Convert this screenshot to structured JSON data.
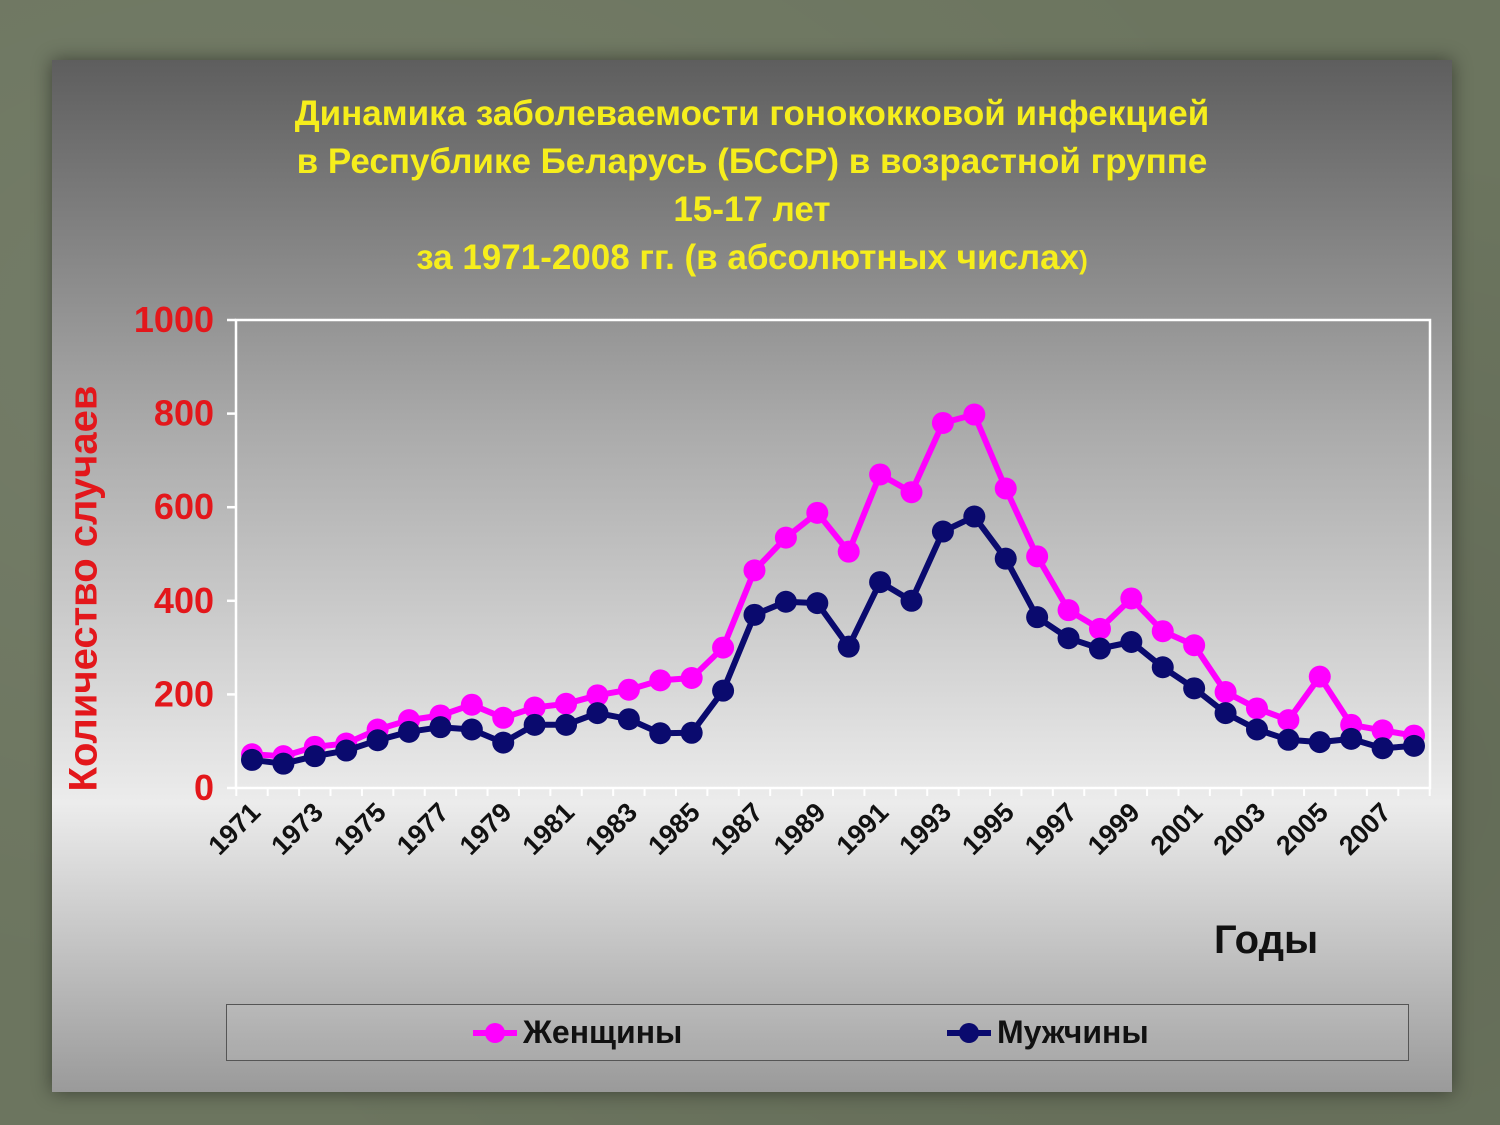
{
  "title": {
    "line1": "Динамика заболеваемости гонококковой инфекцией",
    "line2": "в Республике Беларусь (БССР) в возрастной группе",
    "line3": "15-17 лет",
    "line4": "за 1971-2008 гг. (в абсолютных числах",
    "line4_paren": ")"
  },
  "colors": {
    "women": "#ff00ff",
    "men": "#0a0a6e",
    "axis_text": "#e3171b",
    "title": "#f6ee1c"
  },
  "chart_data": {
    "type": "line",
    "xlabel": "Годы",
    "ylabel": "Количество случаев",
    "ylim": [
      0,
      1000
    ],
    "yticks": [
      "0",
      "200",
      "400",
      "600",
      "800",
      "1000"
    ],
    "x": [
      1971,
      1972,
      1973,
      1974,
      1975,
      1976,
      1977,
      1978,
      1979,
      1980,
      1981,
      1982,
      1983,
      1984,
      1985,
      1986,
      1987,
      1988,
      1989,
      1990,
      1991,
      1992,
      1993,
      1994,
      1995,
      1996,
      1997,
      1998,
      1999,
      2000,
      2001,
      2002,
      2003,
      2004,
      2005,
      2006,
      2007,
      2008
    ],
    "xtick_labels": [
      "1971",
      "1973",
      "1975",
      "1977",
      "1979",
      "1981",
      "1983",
      "1985",
      "1987",
      "1989",
      "1991",
      "1993",
      "1995",
      "1997",
      "1999",
      "2001",
      "2003",
      "2005",
      "2007"
    ],
    "grid": false,
    "legend_position": "bottom",
    "series": [
      {
        "name": "Женщины",
        "color": "#ff00ff",
        "values": [
          72,
          68,
          88,
          95,
          125,
          145,
          155,
          178,
          150,
          172,
          180,
          198,
          210,
          230,
          235,
          300,
          465,
          535,
          588,
          505,
          670,
          632,
          780,
          798,
          640,
          495,
          380,
          340,
          405,
          335,
          305,
          205,
          170,
          145,
          238,
          135,
          123,
          112
        ]
      },
      {
        "name": "Мужчины",
        "color": "#0a0a6e",
        "values": [
          60,
          52,
          68,
          80,
          102,
          120,
          130,
          125,
          97,
          135,
          135,
          160,
          147,
          117,
          118,
          208,
          370,
          398,
          395,
          302,
          440,
          400,
          548,
          580,
          490,
          365,
          320,
          298,
          312,
          258,
          213,
          160,
          125,
          103,
          98,
          105,
          85,
          90
        ]
      }
    ]
  }
}
